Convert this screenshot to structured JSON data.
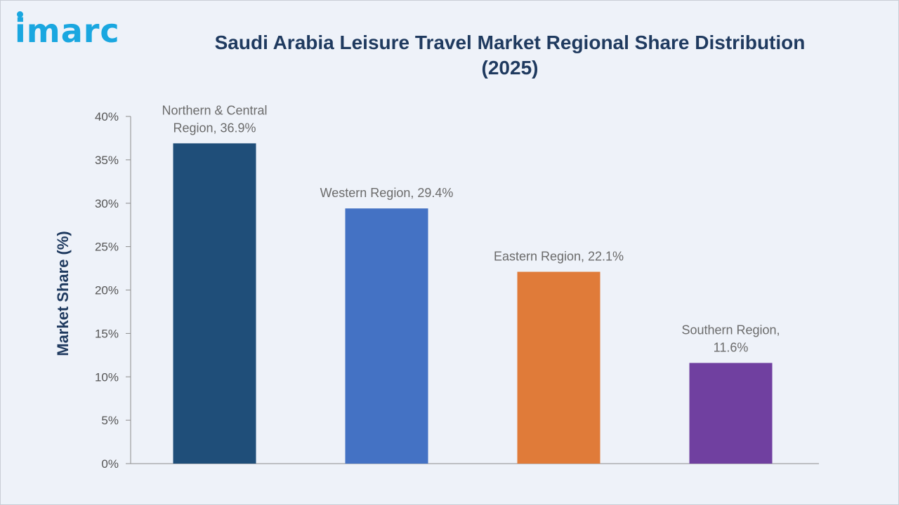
{
  "brand": {
    "logo_text": "imarc",
    "logo_color": "#1aa7e0"
  },
  "title": {
    "line1": "Saudi Arabia Leisure Travel Market Regional Share Distribution",
    "line2": "(2025)"
  },
  "chart_data": {
    "type": "bar",
    "title": "Saudi Arabia Leisure Travel Market Regional Share Distribution (2025)",
    "ylabel": "Market Share (%)",
    "xlabel": "",
    "ylim": [
      0,
      40
    ],
    "yticks": [
      0,
      5,
      10,
      15,
      20,
      25,
      30,
      35,
      40
    ],
    "ytick_labels": [
      "0%",
      "5%",
      "10%",
      "15%",
      "20%",
      "25%",
      "30%",
      "35%",
      "40%"
    ],
    "grid": false,
    "bars": [
      {
        "label_lines": [
          "Northern & Central",
          "Region, 36.9%"
        ],
        "value": 36.9,
        "color": "#1f4e79"
      },
      {
        "label_lines": [
          "Western Region, 29.4%"
        ],
        "value": 29.4,
        "color": "#4472c4"
      },
      {
        "label_lines": [
          "Eastern Region, 22.1%"
        ],
        "value": 22.1,
        "color": "#e07b39"
      },
      {
        "label_lines": [
          "Southern Region,",
          "11.6%"
        ],
        "value": 11.6,
        "color": "#7040a0"
      }
    ]
  }
}
